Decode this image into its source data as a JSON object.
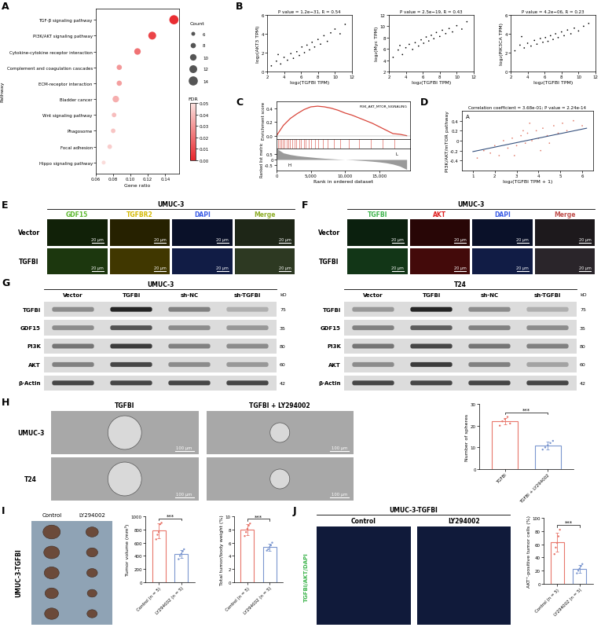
{
  "chart_data": [
    {
      "type": "dot",
      "panel": "A",
      "categories": [
        "TGF-β signaling pathway",
        "PI3K/AKT signaling pathway",
        "Cytokine-cytokine receptor interaction",
        "Complement and coagulation cascades",
        "ECM-receptor interaction",
        "Bladder cancer",
        "Wnt signaling pathway",
        "Phagosome",
        "Focal adhesion",
        "Hippo signaling pathway"
      ],
      "x": [
        0.15,
        0.125,
        0.108,
        0.087,
        0.087,
        0.083,
        0.081,
        0.08,
        0.076,
        0.069
      ],
      "sizes": [
        14,
        12,
        10,
        8,
        8,
        10,
        7,
        7,
        7,
        6
      ],
      "fdr": [
        0.002,
        0.008,
        0.02,
        0.03,
        0.032,
        0.036,
        0.04,
        0.042,
        0.044,
        0.048
      ],
      "xlabel": "Gene ratio",
      "ylabel": "Pathway",
      "xlim": [
        0.06,
        0.156
      ],
      "xticks": [
        {
          "value": 0.06,
          "label": "0.06"
        },
        {
          "value": 0.08,
          "label": "0.08"
        },
        {
          "value": 0.1,
          "label": "0.10"
        },
        {
          "value": 0.12,
          "label": "0.12"
        },
        {
          "value": 0.14,
          "label": "0.14"
        }
      ],
      "size_legend": {
        "title": "Count",
        "values": [
          6,
          8,
          10,
          12,
          14
        ]
      },
      "colorbar": {
        "title": "FDR",
        "range": [
          0,
          0.05
        ],
        "ticks": [
          {
            "value": 0,
            "label": "0.00"
          },
          {
            "value": 0.01,
            "label": "0.01"
          },
          {
            "value": 0.02,
            "label": "0.02"
          },
          {
            "value": 0.03,
            "label": "0.03"
          },
          {
            "value": 0.04,
            "label": "0.04"
          },
          {
            "value": 0.05,
            "label": "0.05"
          }
        ]
      }
    },
    {
      "type": "scatter",
      "panel": "B",
      "title": "P value = 1.2e−31, R = 0.54",
      "x": [
        2.5,
        3.1,
        3.6,
        4.0,
        4.4,
        4.8,
        5.1,
        5.5,
        5.8,
        6.1,
        6.4,
        6.7,
        7.0,
        7.3,
        7.6,
        8.0,
        8.3,
        8.7,
        9.1,
        9.5,
        10.0,
        10.6,
        11.2,
        3.3
      ],
      "values": [
        0.6,
        1.1,
        0.8,
        1.5,
        1.2,
        1.9,
        1.4,
        2.1,
        1.7,
        2.6,
        2.0,
        2.8,
        2.3,
        3.1,
        2.6,
        3.4,
        2.9,
        3.8,
        3.2,
        4.1,
        4.5,
        4.0,
        5.0,
        1.8
      ],
      "color": "#000000",
      "xlabel": "log₂(TGFBI TPM)",
      "ylabel": "log₂(AKT3 TPM)",
      "xlim": [
        2,
        12
      ],
      "xticks": [
        2,
        4,
        6,
        8,
        10,
        12
      ],
      "ylim": [
        0,
        6
      ],
      "yticks": [
        0,
        2,
        4,
        6
      ]
    },
    {
      "type": "scatter",
      "title": "P value = 2.5e−19, R = 0.43",
      "x": [
        2.5,
        3.1,
        3.6,
        4.0,
        4.4,
        4.8,
        5.1,
        5.5,
        5.8,
        6.1,
        6.4,
        6.7,
        7.0,
        7.3,
        7.6,
        8.0,
        8.3,
        8.7,
        9.1,
        9.5,
        10.0,
        10.6,
        11.2,
        3.3
      ],
      "values": [
        4.5,
        5.8,
        5.0,
        6.2,
        6.8,
        5.9,
        7.1,
        6.5,
        7.6,
        7.0,
        8.1,
        7.4,
        8.4,
        7.8,
        8.9,
        8.2,
        9.3,
        8.7,
        9.6,
        9.0,
        10.1,
        9.5,
        10.8,
        6.6
      ],
      "color": "#000000",
      "xlabel": "log₂(TGFBI TPM)",
      "ylabel": "log₂(Myc TPM)",
      "xlim": [
        2,
        12
      ],
      "xticks": [
        2,
        4,
        6,
        8,
        10,
        12
      ],
      "ylim": [
        2,
        12
      ],
      "yticks": [
        2,
        4,
        6,
        8,
        10,
        12
      ]
    },
    {
      "type": "scatter",
      "title": "P value = 4.2e−06, R = 0.23",
      "x": [
        2.5,
        3.1,
        3.6,
        4.0,
        4.4,
        4.8,
        5.1,
        5.5,
        5.8,
        6.1,
        6.4,
        6.7,
        7.0,
        7.3,
        7.6,
        8.0,
        8.3,
        8.7,
        9.1,
        9.5,
        10.0,
        10.6,
        11.2,
        3.3
      ],
      "values": [
        2.2,
        2.8,
        2.5,
        3.0,
        2.7,
        3.3,
        2.9,
        3.5,
        3.1,
        3.6,
        3.2,
        3.8,
        3.4,
        4.0,
        3.6,
        4.2,
        3.8,
        4.4,
        4.0,
        4.6,
        4.3,
        4.8,
        5.1,
        3.7
      ],
      "color": "#000000",
      "xlabel": "log₂(TGFBI TPM)",
      "ylabel": "log₂(PIK3CA TPM)",
      "xlim": [
        2,
        12
      ],
      "xticks": [
        2,
        4,
        6,
        8,
        10,
        12
      ],
      "ylim": [
        0,
        6
      ],
      "yticks": [
        0,
        2,
        4,
        6
      ]
    },
    {
      "type": "gsea",
      "panel": "C",
      "gene_set": "PI3K_AKT_MTOR_SIGNALING",
      "color": "#d9453a",
      "es": {
        "x": [
          0,
          1000,
          2000,
          3000,
          4000,
          5000,
          6000,
          7000,
          8000,
          9000,
          10000,
          11000,
          12000,
          13000,
          14000,
          15000,
          16000,
          17000,
          18000,
          19000
        ],
        "values": [
          0,
          0.15,
          0.25,
          0.32,
          0.38,
          0.42,
          0.43,
          0.42,
          0.4,
          0.37,
          0.33,
          0.3,
          0.26,
          0.22,
          0.18,
          0.13,
          0.08,
          0.03,
          0.02,
          0
        ]
      },
      "hits": [
        200,
        450,
        700,
        900,
        1200,
        1500,
        1700,
        2000,
        2300,
        2600,
        2900,
        3300,
        3600,
        4000,
        4300,
        4700,
        5100,
        5600,
        6100,
        6800,
        7500,
        8400,
        9300,
        10500,
        12000,
        13800,
        15500,
        17200
      ],
      "metric": {
        "x": [
          0,
          1000,
          2000,
          3000,
          4000,
          5000,
          6000,
          7000,
          8000,
          9000,
          10000,
          11000,
          12000,
          13000,
          14000,
          15000,
          16000,
          17000,
          18000,
          19000
        ],
        "values": [
          1.0,
          0.6,
          0.45,
          0.35,
          0.28,
          0.22,
          0.16,
          0.11,
          0.07,
          0.03,
          0.0,
          -0.03,
          -0.07,
          -0.11,
          -0.16,
          -0.22,
          -0.3,
          -0.42,
          -0.6,
          -0.9
        ]
      },
      "metric_labels": [
        "H",
        "L"
      ],
      "xlabel": "Rank in ordered dataset",
      "ylabel": "Enrichment score",
      "metric_ylabel": "Ranked list metric",
      "xlim": [
        0,
        19500
      ],
      "xticks": [
        0,
        {
          "value": 5000,
          "label": "5,000"
        },
        {
          "value": 10000,
          "label": "10,000"
        },
        {
          "value": 15000,
          "label": "15,000"
        }
      ],
      "ylim": [
        -0.05,
        0.5
      ],
      "yticks": [
        {
          "value": 0,
          "label": "0.0"
        },
        {
          "value": 0.2,
          "label": "0.2"
        },
        {
          "value": 0.4,
          "label": "0.4"
        }
      ],
      "metric_ylim": [
        -1,
        1
      ],
      "metric_yticks": [
        -0.5,
        0,
        0.5
      ]
    },
    {
      "type": "scatter",
      "panel": "D",
      "inset_label": "A",
      "title": "Correlation coefficient = 3.68e-01; P value = 2.24e-14",
      "x": [
        1.2,
        1.5,
        1.8,
        2.0,
        2.2,
        2.4,
        2.6,
        2.8,
        3.0,
        3.2,
        3.4,
        3.5,
        3.7,
        3.9,
        4.0,
        4.2,
        4.4,
        4.5,
        4.7,
        4.9,
        5.1,
        5.3,
        5.6,
        6.0,
        2.9,
        3.6,
        4.1,
        3.3
      ],
      "values": [
        -0.35,
        -0.2,
        -0.25,
        -0.1,
        -0.3,
        0.0,
        -0.15,
        0.05,
        -0.1,
        0.1,
        -0.05,
        0.15,
        0.0,
        0.2,
        0.05,
        0.25,
        0.1,
        -0.05,
        0.3,
        0.15,
        0.35,
        0.2,
        0.4,
        0.3,
        -0.3,
        0.35,
        -0.2,
        0.2
      ],
      "color": "#e07b6a",
      "fit": {
        "x": [
          1,
          6.2
        ],
        "y": [
          -0.22,
          0.25
        ],
        "color": "#35507d"
      },
      "xlabel": "log₂(TGFBI TPM + 1)",
      "ylabel": "PI3K/AKT/mTOR pathway",
      "xlim": [
        0.5,
        6.5
      ],
      "xticks": [
        1,
        2,
        3,
        4,
        5,
        6
      ],
      "ylim": [
        -0.6,
        0.6
      ],
      "yticks": [
        -0.4,
        -0.2,
        0,
        0.2,
        0.4
      ]
    },
    {
      "type": "bar",
      "categories": [
        "TGFBI",
        "TGFBI + LY294002"
      ],
      "values": [
        22,
        11
      ],
      "errors": [
        1.5,
        1.8
      ],
      "points": [
        [
          20,
          22,
          23,
          24,
          21
        ],
        [
          9,
          10,
          11,
          12,
          13
        ]
      ],
      "colors": [
        "#e8766b",
        "#7b96cf"
      ],
      "ylabel": "Number of spheres",
      "ylim": [
        0,
        30
      ],
      "yticks": [
        0,
        10,
        20,
        30
      ],
      "significance": "***"
    },
    {
      "type": "bar",
      "categories": [
        "Control (n = 5)",
        "LY294002 (n = 5)"
      ],
      "values": [
        780,
        430
      ],
      "errors": [
        110,
        60
      ],
      "points": [
        [
          650,
          720,
          760,
          880,
          900
        ],
        [
          350,
          400,
          430,
          470,
          500
        ]
      ],
      "colors": [
        "#e8766b",
        "#7b96cf"
      ],
      "ylabel": "Tumor volume (mm³)",
      "ylim": [
        0,
        1000
      ],
      "yticks": [
        0,
        200,
        400,
        600,
        800,
        1000
      ],
      "significance": "***"
    },
    {
      "type": "bar",
      "categories": [
        "Control (n = 5)",
        "LY294002 (n = 5)"
      ],
      "values": [
        8.0,
        5.3
      ],
      "errors": [
        0.8,
        0.5
      ],
      "points": [
        [
          7.0,
          7.6,
          8.1,
          8.6,
          8.9
        ],
        [
          4.8,
          5.0,
          5.3,
          5.6,
          6.0
        ]
      ],
      "colors": [
        "#e8766b",
        "#7b96cf"
      ],
      "ylabel": "Total tumor/body weight (%)",
      "ylim": [
        0,
        10
      ],
      "yticks": [
        0,
        2,
        4,
        6,
        8,
        10
      ],
      "significance": "***"
    },
    {
      "type": "bar",
      "categories": [
        "Control (n = 5)",
        "LY294002 (n = 5)"
      ],
      "values": [
        63,
        23
      ],
      "errors": [
        14,
        6
      ],
      "points": [
        [
          45,
          55,
          62,
          72,
          82
        ],
        [
          16,
          20,
          23,
          27,
          30
        ]
      ],
      "colors": [
        "#e8766b",
        "#7b96cf"
      ],
      "ylabel": "AKT⁺-positive tumor cells (%)",
      "ylim": [
        0,
        100
      ],
      "yticks": [
        0,
        20,
        40,
        60,
        80,
        100
      ],
      "significance": "***"
    }
  ],
  "fluorescence": [
    {
      "panel": "E",
      "title": "UMUC-3",
      "rows": [
        "Vector",
        "TGFBI"
      ],
      "scale_bar": "20 μm",
      "channels": [
        {
          "name": "GDF15",
          "color": "#5cb82e"
        },
        {
          "name": "TGFBR2",
          "color": "#d4b800"
        },
        {
          "name": "DAPI",
          "color": "#3a5ce6"
        },
        {
          "name": "Merge",
          "color": "#8fae2a"
        }
      ]
    },
    {
      "panel": "F",
      "title": "UMUC-3",
      "rows": [
        "Vector",
        "TGFBI"
      ],
      "scale_bar": "20 μm",
      "channels": [
        {
          "name": "TGFBI",
          "color": "#3cb44b"
        },
        {
          "name": "AKT",
          "color": "#e02020"
        },
        {
          "name": "DAPI",
          "color": "#3a5ce6"
        },
        {
          "name": "Merge",
          "color": "#c0504d"
        }
      ]
    }
  ],
  "western_blot": {
    "panel": "G",
    "unit": "kD",
    "blots": [
      {
        "title": "UMUC-3",
        "lanes": [
          "Vector",
          "TGFBI",
          "sh-NC",
          "sh-TGFBI"
        ],
        "proteins": [
          {
            "name": "TGFBI",
            "kd": 75,
            "intensities": [
              0.5,
              0.95,
              0.55,
              0.35
            ]
          },
          {
            "name": "GDF15",
            "kd": 35,
            "intensities": [
              0.5,
              0.75,
              0.5,
              0.45
            ]
          },
          {
            "name": "PI3K",
            "kd": 80,
            "intensities": [
              0.6,
              0.85,
              0.55,
              0.5
            ]
          },
          {
            "name": "AKT",
            "kd": 60,
            "intensities": [
              0.55,
              0.8,
              0.5,
              0.45
            ]
          },
          {
            "name": "β-Actin",
            "kd": 42,
            "intensities": [
              0.8,
              0.8,
              0.8,
              0.8
            ]
          }
        ]
      },
      {
        "title": "T24",
        "lanes": [
          "Vector",
          "TGFBI",
          "sh-NC",
          "sh-TGFBI"
        ],
        "proteins": [
          {
            "name": "TGFBI",
            "kd": 75,
            "intensities": [
              0.45,
              0.95,
              0.5,
              0.35
            ]
          },
          {
            "name": "GDF15",
            "kd": 35,
            "intensities": [
              0.55,
              0.7,
              0.55,
              0.5
            ]
          },
          {
            "name": "PI3K",
            "kd": 80,
            "intensities": [
              0.6,
              0.8,
              0.6,
              0.55
            ]
          },
          {
            "name": "AKT",
            "kd": 60,
            "intensities": [
              0.5,
              0.85,
              0.55,
              0.4
            ]
          },
          {
            "name": "β-Actin",
            "kd": 42,
            "intensities": [
              0.8,
              0.8,
              0.8,
              0.8
            ]
          }
        ]
      }
    ]
  },
  "spheres": {
    "panel": "H",
    "columns": [
      "TGFBI",
      "TGFBI + LY294002"
    ],
    "rows": [
      "UMUC-3",
      "T24"
    ],
    "scale_bar": "100 μm"
  },
  "tumors": {
    "panel": "I",
    "row_label": "UMUC-3-TGFBI",
    "columns": [
      "Control",
      "LY294002"
    ]
  },
  "tissue": {
    "panel": "J",
    "title": "UMUC-3-TGFBI",
    "columns": [
      "Control",
      "LY294002"
    ],
    "stain_label": "TGFBI/AKT/DAPI",
    "stain_color": "#3cb44b"
  }
}
